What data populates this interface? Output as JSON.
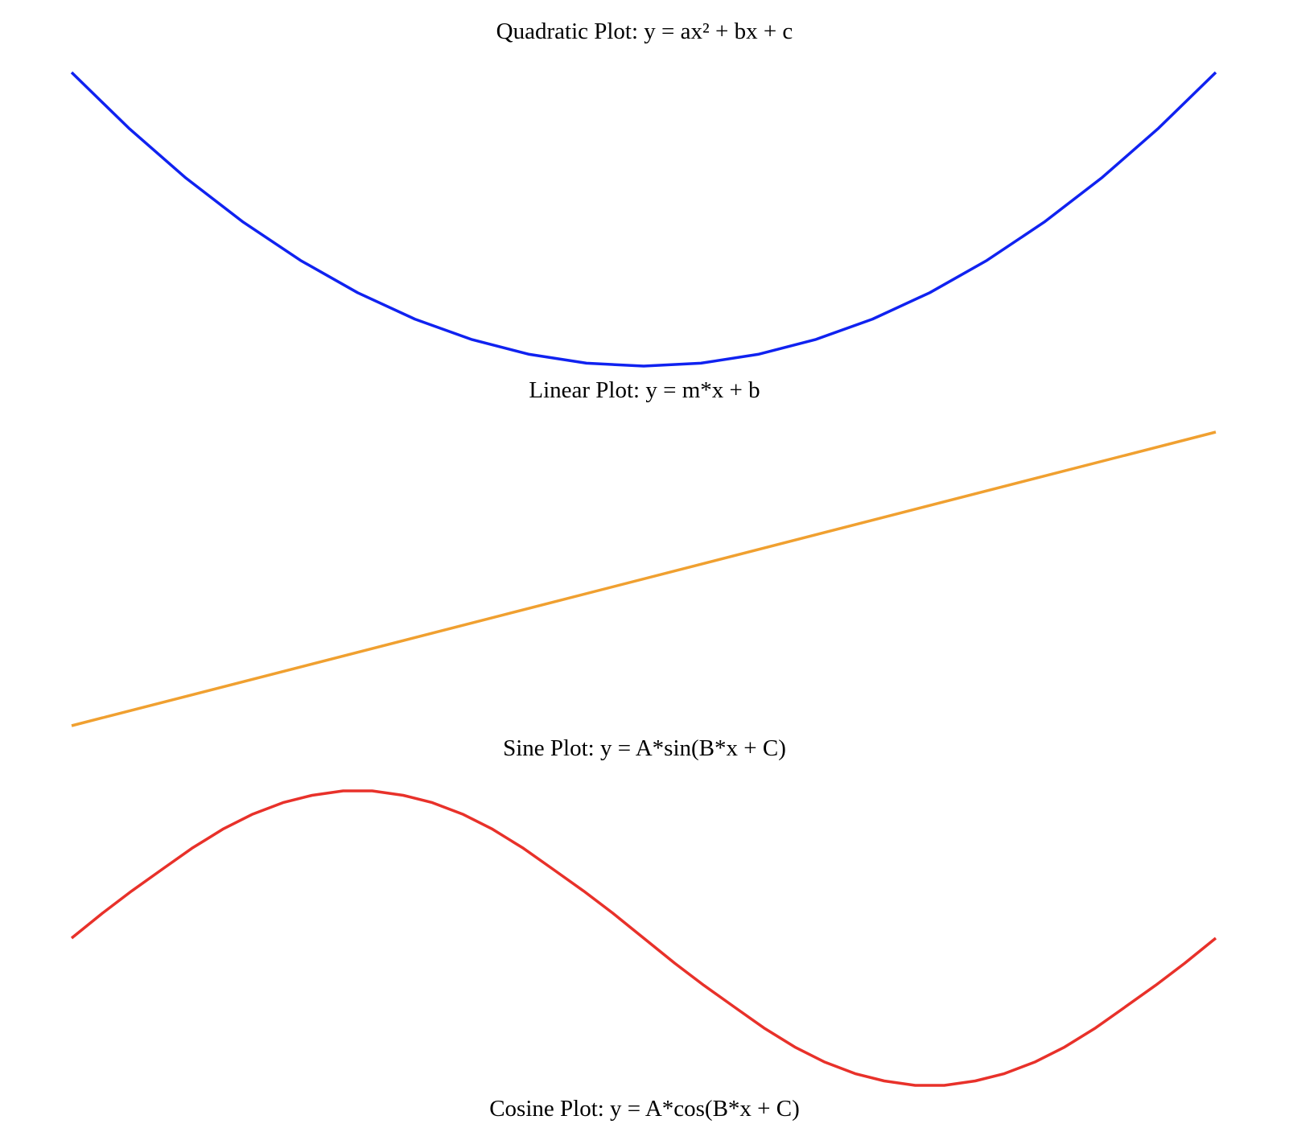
{
  "chart_data": [
    {
      "type": "line",
      "title": "Quadratic Plot: y = ax² + bx + c",
      "color": "#1022f0",
      "xlim": [
        -10,
        10
      ],
      "ylim": [
        0,
        100
      ],
      "x": [
        -10,
        -9,
        -8,
        -7,
        -6,
        -5,
        -4,
        -3,
        -2,
        -1,
        0,
        1,
        2,
        3,
        4,
        5,
        6,
        7,
        8,
        9,
        10
      ],
      "series": [
        {
          "values": [
            100,
            81,
            64,
            49,
            36,
            25,
            16,
            9,
            4,
            1,
            0,
            1,
            4,
            9,
            16,
            25,
            36,
            49,
            64,
            81,
            100
          ]
        }
      ]
    },
    {
      "type": "line",
      "title": "Linear Plot: y = m*x + b",
      "color": "#f0a030",
      "xlim": [
        -10,
        10
      ],
      "ylim": [
        -20,
        20
      ],
      "x": [
        -10,
        10
      ],
      "series": [
        {
          "values": [
            -20,
            20
          ]
        }
      ]
    },
    {
      "type": "line",
      "title": "Sine Plot: y = A*sin(B*x + C)",
      "color": "#e8312a",
      "xlim": [
        -3.14,
        3.14
      ],
      "ylim": [
        -1,
        1
      ],
      "x": [
        -3.14,
        -2.97,
        -2.81,
        -2.64,
        -2.48,
        -2.31,
        -2.15,
        -1.98,
        -1.82,
        -1.65,
        -1.49,
        -1.32,
        -1.16,
        -0.99,
        -0.83,
        -0.66,
        -0.5,
        -0.33,
        -0.17,
        0,
        0.17,
        0.33,
        0.5,
        0.66,
        0.83,
        0.99,
        1.16,
        1.32,
        1.49,
        1.65,
        1.82,
        1.98,
        2.15,
        2.31,
        2.48,
        2.64,
        2.81,
        2.97,
        3.14
      ],
      "series": [
        {
          "values": [
            0,
            0.17,
            0.32,
            0.47,
            0.61,
            0.74,
            0.84,
            0.92,
            0.97,
            1,
            1,
            0.97,
            0.92,
            0.84,
            0.74,
            0.61,
            0.47,
            0.32,
            0.17,
            0,
            -0.17,
            -0.32,
            -0.47,
            -0.61,
            -0.74,
            -0.84,
            -0.92,
            -0.97,
            -1,
            -1,
            -0.97,
            -0.92,
            -0.84,
            -0.74,
            -0.61,
            -0.47,
            -0.32,
            -0.17,
            0
          ]
        }
      ]
    },
    {
      "type": "line",
      "title": "Cosine Plot: y = A*cos(B*x + C)",
      "series": []
    }
  ]
}
